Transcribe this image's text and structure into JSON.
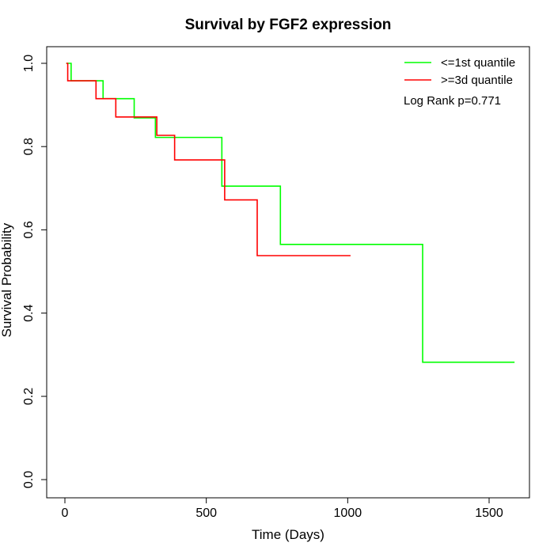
{
  "chart_data": {
    "type": "line",
    "step": true,
    "title": "Survival by FGF2 expression",
    "xlabel": "Time (Days)",
    "ylabel": "Survival Probability",
    "xlim": [
      0,
      1650
    ],
    "ylim": [
      0,
      1.0
    ],
    "xticks": [
      0,
      500,
      1000,
      1500
    ],
    "yticks": [
      0.0,
      0.2,
      0.4,
      0.6,
      0.8,
      1.0
    ],
    "xtick_labels": [
      "0",
      "500",
      "1000",
      "1500"
    ],
    "ytick_labels": [
      "0.0",
      "0.2",
      "0.4",
      "0.6",
      "0.8",
      "1.0"
    ],
    "grid": false,
    "legend_position": "top-right",
    "annotation": "Log Rank p=0.771",
    "series": [
      {
        "name": "<=1st quantile",
        "color": "#00ff00",
        "x": [
          5,
          22,
          135,
          245,
          320,
          555,
          762,
          1265,
          1590
        ],
        "y": [
          1.0,
          0.958,
          0.915,
          0.869,
          0.822,
          0.705,
          0.565,
          0.282,
          0.282
        ]
      },
      {
        "name": ">=3d quantile",
        "color": "#ff0000",
        "x": [
          5,
          10,
          110,
          180,
          325,
          388,
          565,
          680,
          1010
        ],
        "y": [
          1.0,
          0.958,
          0.915,
          0.871,
          0.827,
          0.768,
          0.672,
          0.538,
          0.538
        ]
      }
    ]
  }
}
